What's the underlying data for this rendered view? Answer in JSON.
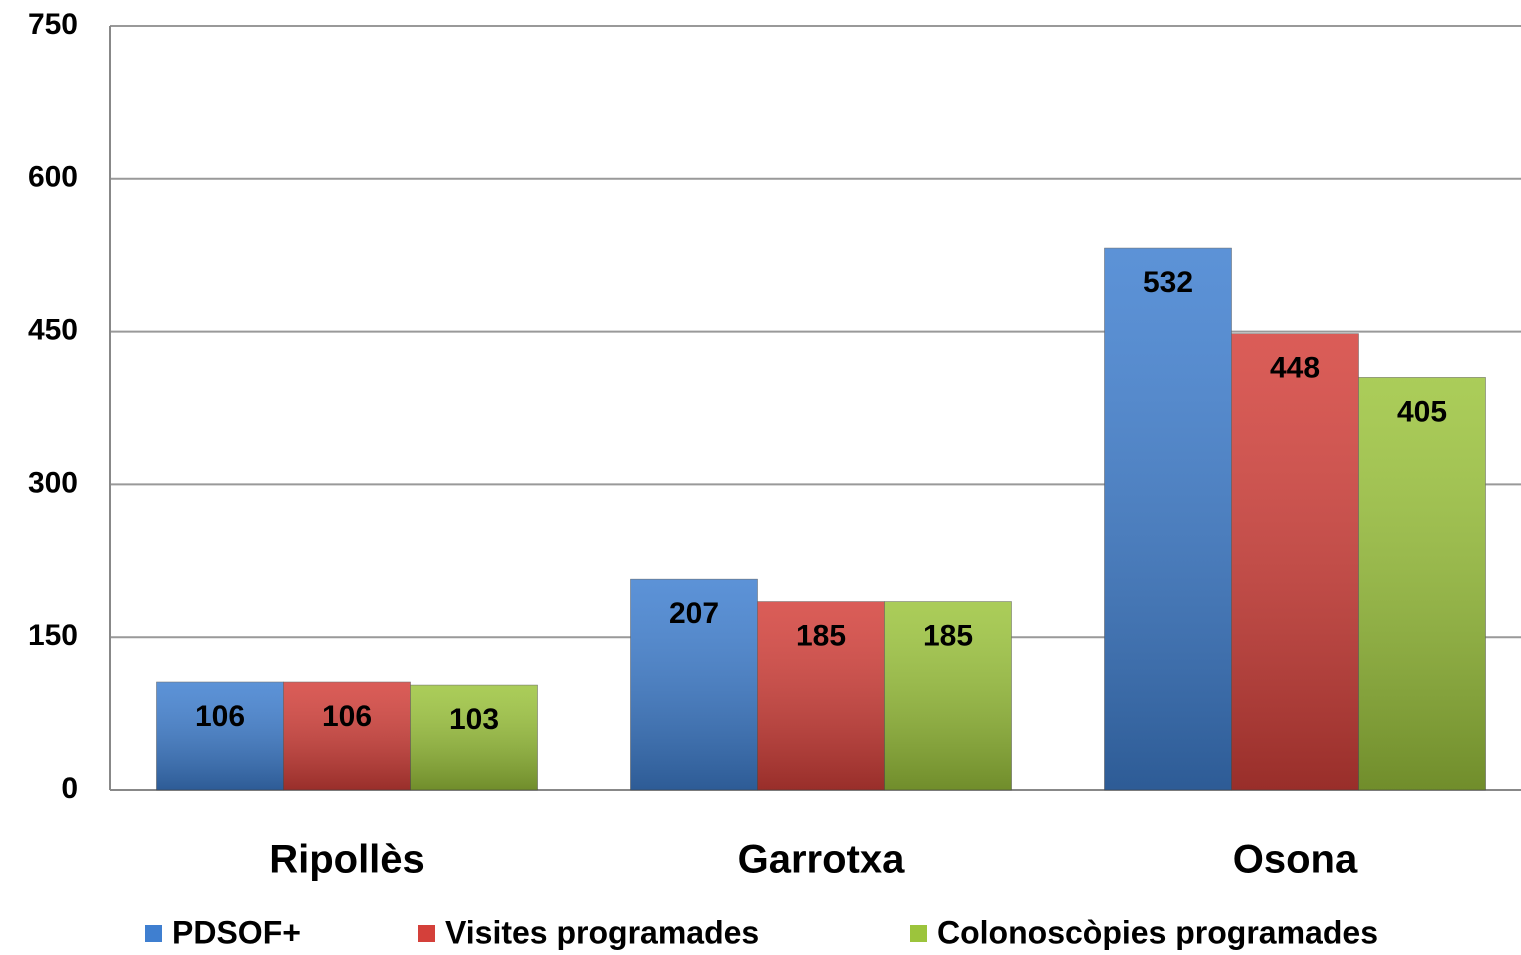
{
  "chart_data": {
    "type": "bar",
    "categories": [
      "Ripollès",
      "Garrotxa",
      "Osona"
    ],
    "series": [
      {
        "name": "PDSOF+",
        "color": "#3f7fd0",
        "values": [
          106,
          207,
          532
        ]
      },
      {
        "name": "Visites programades",
        "color": "#d4403a",
        "values": [
          106,
          185,
          448
        ]
      },
      {
        "name": "Colonoscòpies programades",
        "color": "#9cc43c",
        "values": [
          103,
          185,
          405
        ]
      }
    ],
    "ylim": [
      0,
      750
    ],
    "yticks": [
      0,
      150,
      300,
      450,
      600,
      750
    ],
    "grid": true,
    "legend": "bottom"
  }
}
